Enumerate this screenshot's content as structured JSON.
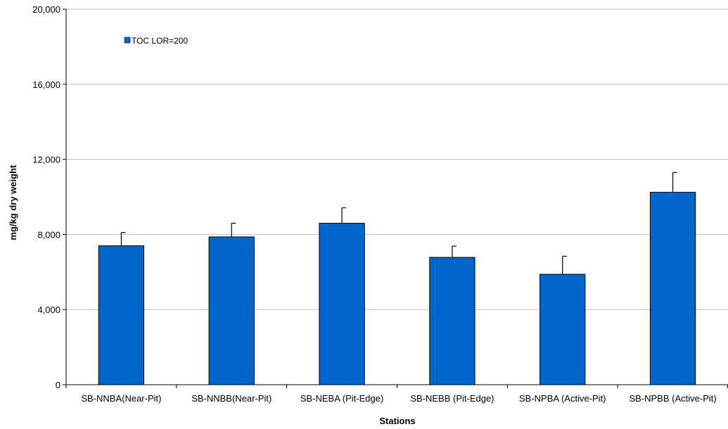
{
  "chart_data": {
    "type": "bar",
    "title": "",
    "xlabel": "Stations",
    "ylabel": "mg/kg dry weight",
    "categories": [
      "SB-NNBA(Near-Pit)",
      "SB-NNBB(Near-Pit)",
      "SB-NEBA (Pit-Edge)",
      "SB-NEBB (Pit-Edge)",
      "SB-NPBA (Active-Pit)",
      "SB-NPBB (Active-Pit)"
    ],
    "series": [
      {
        "name": "TOC LOR=200",
        "values": [
          7400,
          7870,
          8600,
          6780,
          5880,
          10250
        ],
        "error_plus": [
          700,
          730,
          820,
          600,
          960,
          1050
        ],
        "color": "#0066CC"
      }
    ],
    "ylim": [
      0,
      20000
    ],
    "yticks": [
      0,
      4000,
      8000,
      12000,
      16000,
      20000
    ],
    "ytick_labels": [
      "0",
      "4,000",
      "8,000",
      "12,000",
      "16,000",
      "20,000"
    ],
    "grid": true,
    "legend_position": "top-left"
  }
}
